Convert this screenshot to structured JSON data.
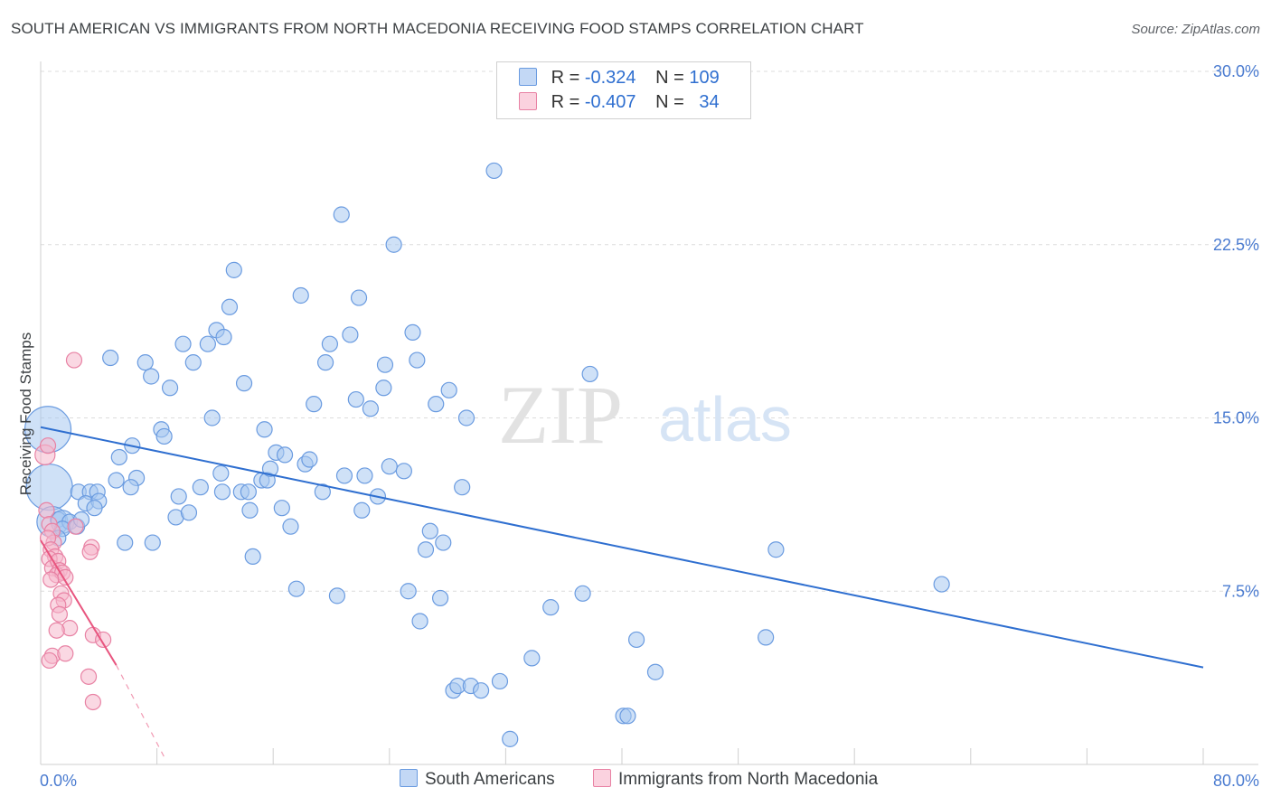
{
  "title": "SOUTH AMERICAN VS IMMIGRANTS FROM NORTH MACEDONIA RECEIVING FOOD STAMPS CORRELATION CHART",
  "source": "Source: ZipAtlas.com",
  "watermark": {
    "zip": "ZIP",
    "atlas": "atlas"
  },
  "legend": {
    "rows": [
      {
        "r_label": "R = ",
        "r_value": "-0.324",
        "n_label": "N = ",
        "n_value": "109",
        "color": "#a8c8f0"
      },
      {
        "r_label": "R = ",
        "r_value": "-0.407",
        "n_label": "N = ",
        "n_value": "34",
        "color": "#f5b8cc"
      }
    ]
  },
  "bottom_legend": {
    "south_americans": "South Americans",
    "north_macedonia": "Immigrants from North Macedonia"
  },
  "chart_data": {
    "type": "scatter",
    "xlabel": "",
    "ylabel": "Receiving Food Stamps",
    "xlim": [
      0,
      80
    ],
    "ylim": [
      0,
      30
    ],
    "x_tick_labels": [
      "0.0%",
      "80.0%"
    ],
    "y_ticks": [
      7.5,
      15.0,
      22.5,
      30.0
    ],
    "y_tick_labels": [
      "7.5%",
      "15.0%",
      "22.5%",
      "30.0%"
    ],
    "grid": true,
    "series": [
      {
        "name": "South Americans",
        "color": "#a8c8f0",
        "edge": "#6a9be0",
        "line_color": "#2f6fd0",
        "trend": {
          "x": [
            0,
            80
          ],
          "y": [
            14.6,
            4.2
          ]
        },
        "points": [
          [
            0.5,
            14.5,
            3
          ],
          [
            0.6,
            12.0,
            3
          ],
          [
            0.8,
            10.5,
            2
          ],
          [
            1.2,
            10.6,
            1
          ],
          [
            1.5,
            10.5,
            1.5
          ],
          [
            2.0,
            10.5,
            1
          ],
          [
            1.5,
            10.2,
            1
          ],
          [
            1.2,
            9.8,
            1
          ],
          [
            2.5,
            10.3,
            1
          ],
          [
            2.8,
            10.6,
            1
          ],
          [
            2.6,
            11.8,
            1
          ],
          [
            3.4,
            11.8,
            1
          ],
          [
            3.1,
            11.3,
            1
          ],
          [
            3.9,
            11.8,
            1
          ],
          [
            4.0,
            11.4,
            1
          ],
          [
            3.7,
            11.1,
            1
          ],
          [
            4.8,
            17.6,
            1
          ],
          [
            5.4,
            13.3,
            1
          ],
          [
            6.3,
            13.8,
            1
          ],
          [
            5.2,
            12.3,
            1
          ],
          [
            6.6,
            12.4,
            1
          ],
          [
            6.2,
            12.0,
            1
          ],
          [
            5.8,
            9.6,
            1
          ],
          [
            7.7,
            9.6,
            1
          ],
          [
            7.2,
            17.4,
            1
          ],
          [
            7.6,
            16.8,
            1
          ],
          [
            8.3,
            14.5,
            1
          ],
          [
            8.5,
            14.2,
            1
          ],
          [
            8.9,
            16.3,
            1
          ],
          [
            9.5,
            11.6,
            1
          ],
          [
            9.3,
            10.7,
            1
          ],
          [
            10.2,
            10.9,
            1
          ],
          [
            9.8,
            18.2,
            1
          ],
          [
            10.5,
            17.4,
            1
          ],
          [
            11.0,
            12.0,
            1
          ],
          [
            11.5,
            18.2,
            1
          ],
          [
            11.8,
            15.0,
            1
          ],
          [
            12.1,
            18.8,
            1
          ],
          [
            12.4,
            12.6,
            1
          ],
          [
            12.6,
            18.5,
            1
          ],
          [
            12.5,
            11.8,
            1
          ],
          [
            13.0,
            19.8,
            1
          ],
          [
            13.3,
            21.4,
            1
          ],
          [
            13.8,
            11.8,
            1
          ],
          [
            14.0,
            16.5,
            1
          ],
          [
            14.3,
            11.8,
            1
          ],
          [
            14.4,
            11.0,
            1
          ],
          [
            14.6,
            9.0,
            1
          ],
          [
            15.2,
            12.3,
            1
          ],
          [
            15.4,
            14.5,
            1
          ],
          [
            15.6,
            12.3,
            1
          ],
          [
            15.8,
            12.8,
            1
          ],
          [
            16.2,
            13.5,
            1
          ],
          [
            16.6,
            11.1,
            1
          ],
          [
            16.8,
            13.4,
            1
          ],
          [
            17.2,
            10.3,
            1
          ],
          [
            17.6,
            7.6,
            1
          ],
          [
            17.9,
            20.3,
            1
          ],
          [
            18.2,
            13.0,
            1
          ],
          [
            18.5,
            13.2,
            1
          ],
          [
            18.8,
            15.6,
            1
          ],
          [
            19.4,
            11.8,
            1
          ],
          [
            19.6,
            17.4,
            1
          ],
          [
            19.9,
            18.2,
            1
          ],
          [
            20.4,
            7.3,
            1
          ],
          [
            20.7,
            23.8,
            1
          ],
          [
            20.9,
            12.5,
            1
          ],
          [
            21.3,
            18.6,
            1
          ],
          [
            21.7,
            15.8,
            1
          ],
          [
            21.9,
            20.2,
            1
          ],
          [
            22.1,
            11.0,
            1
          ],
          [
            22.3,
            12.5,
            1
          ],
          [
            22.7,
            15.4,
            1
          ],
          [
            23.2,
            11.6,
            1
          ],
          [
            23.7,
            17.3,
            1
          ],
          [
            23.6,
            16.3,
            1
          ],
          [
            24.0,
            12.9,
            1
          ],
          [
            24.3,
            22.5,
            1
          ],
          [
            25.0,
            12.7,
            1
          ],
          [
            25.3,
            7.5,
            1
          ],
          [
            25.6,
            18.7,
            1
          ],
          [
            25.9,
            17.5,
            1
          ],
          [
            26.1,
            6.2,
            1
          ],
          [
            26.5,
            9.3,
            1
          ],
          [
            26.8,
            10.1,
            1
          ],
          [
            27.2,
            15.6,
            1
          ],
          [
            27.5,
            7.2,
            1
          ],
          [
            27.7,
            9.6,
            1
          ],
          [
            28.1,
            16.2,
            1
          ],
          [
            28.4,
            3.2,
            1
          ],
          [
            28.7,
            3.4,
            1
          ],
          [
            29.0,
            12.0,
            1
          ],
          [
            29.3,
            15.0,
            1
          ],
          [
            29.6,
            3.4,
            1
          ],
          [
            30.3,
            3.2,
            1
          ],
          [
            31.2,
            25.7,
            1
          ],
          [
            31.6,
            3.6,
            1
          ],
          [
            32.3,
            1.1,
            1
          ],
          [
            33.8,
            4.6,
            1
          ],
          [
            35.1,
            6.8,
            1
          ],
          [
            37.3,
            7.4,
            1
          ],
          [
            37.8,
            16.9,
            1
          ],
          [
            40.1,
            2.1,
            1
          ],
          [
            40.4,
            2.1,
            1
          ],
          [
            41.0,
            5.4,
            1
          ],
          [
            42.3,
            4.0,
            1
          ],
          [
            49.9,
            5.5,
            1
          ],
          [
            50.6,
            9.3,
            1
          ],
          [
            62.0,
            7.8,
            1
          ]
        ]
      },
      {
        "name": "Immigrants from North Macedonia",
        "color": "#f5b8cc",
        "edge": "#e882a4",
        "line_color": "#e8557f",
        "trend": {
          "x": [
            0,
            5.2
          ],
          "y": [
            9.7,
            4.3
          ]
        },
        "trend_extension": {
          "x": [
            5.2,
            8.6
          ],
          "y": [
            4.3,
            0.2
          ]
        },
        "points": [
          [
            0.3,
            13.4,
            1.3
          ],
          [
            0.5,
            13.8,
            1
          ],
          [
            0.4,
            11.0,
            1
          ],
          [
            0.6,
            10.4,
            1
          ],
          [
            0.8,
            10.1,
            1
          ],
          [
            0.9,
            9.6,
            1
          ],
          [
            0.5,
            9.8,
            1
          ],
          [
            0.7,
            9.3,
            1
          ],
          [
            1.0,
            9.0,
            1
          ],
          [
            0.6,
            8.9,
            1
          ],
          [
            0.8,
            8.5,
            1
          ],
          [
            1.2,
            8.8,
            1
          ],
          [
            1.3,
            8.4,
            1
          ],
          [
            1.1,
            8.2,
            1
          ],
          [
            1.5,
            8.3,
            1
          ],
          [
            1.7,
            8.1,
            1
          ],
          [
            0.7,
            8.0,
            1
          ],
          [
            1.4,
            7.4,
            1
          ],
          [
            1.6,
            7.1,
            1
          ],
          [
            1.2,
            6.9,
            1
          ],
          [
            1.3,
            6.5,
            1
          ],
          [
            2.0,
            5.9,
            1
          ],
          [
            1.1,
            5.8,
            1
          ],
          [
            3.5,
            9.4,
            1
          ],
          [
            3.4,
            9.2,
            1
          ],
          [
            2.3,
            17.5,
            1
          ],
          [
            3.6,
            5.6,
            1
          ],
          [
            4.3,
            5.4,
            1
          ],
          [
            0.8,
            4.7,
            1
          ],
          [
            1.7,
            4.8,
            1
          ],
          [
            0.6,
            4.5,
            1
          ],
          [
            3.3,
            3.8,
            1
          ],
          [
            3.6,
            2.7,
            1
          ],
          [
            2.4,
            10.3,
            1
          ]
        ]
      }
    ]
  }
}
